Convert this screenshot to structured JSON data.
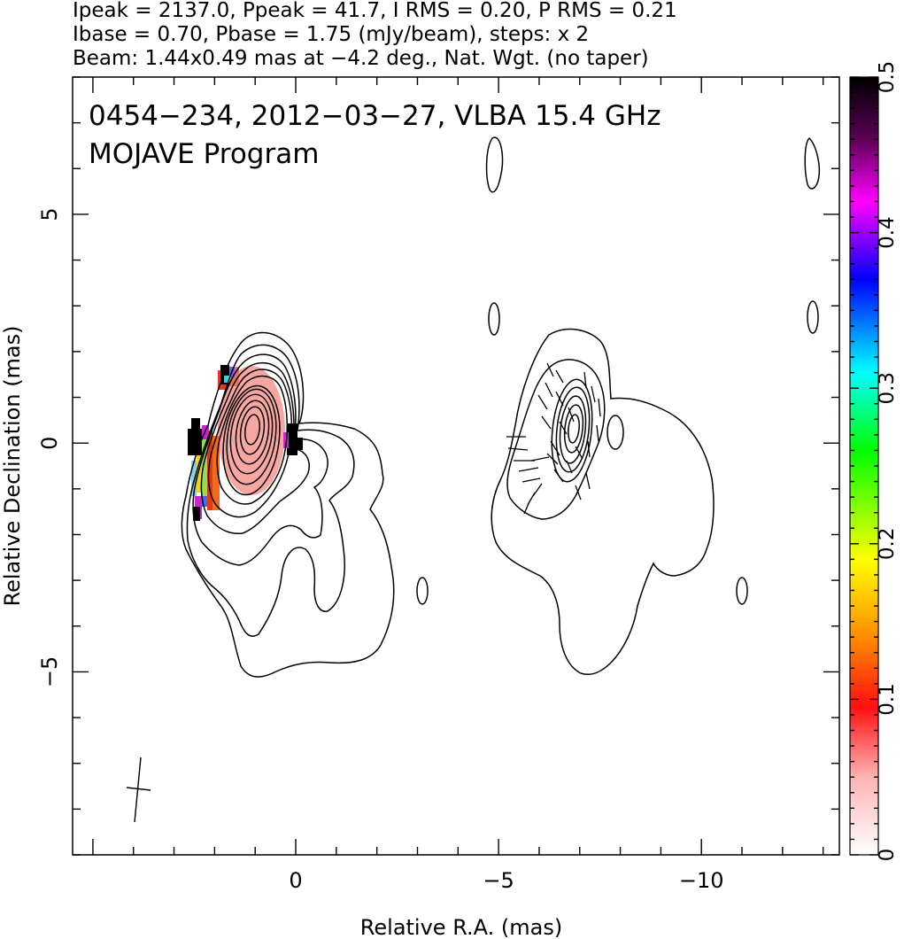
{
  "header": {
    "line1": "Ipeak = 2137.0, Ppeak = 41.7, I RMS = 0.20, P RMS = 0.21",
    "line2": "Ibase = 0.70, Pbase = 1.75 (mJy/beam), steps: x 2",
    "line3": "Beam: 1.44x0.49 mas at −4.2 deg., Nat. Wgt. (no taper)"
  },
  "chart_data": {
    "type": "heatmap",
    "title": "0454−234, 2012−03−27, VLBA 15.4 GHz",
    "subtitle": "MOJAVE Program",
    "xlabel": "Relative R.A. (mas)",
    "ylabel": "Relative Declination (mas)",
    "xlim": [
      5.5,
      -13.4
    ],
    "ylim": [
      -9.0,
      8.0
    ],
    "x_ticks": [
      {
        "value": 0,
        "label": "0"
      },
      {
        "value": -5,
        "label": "−5"
      },
      {
        "value": -10,
        "label": "−10"
      }
    ],
    "y_ticks": [
      {
        "value": 5,
        "label": "5"
      },
      {
        "value": 0,
        "label": "0"
      },
      {
        "value": -5,
        "label": "−5"
      }
    ],
    "colorbar": {
      "min": 0,
      "max": 0.5,
      "ticks": [
        {
          "value": 0,
          "label": "0"
        },
        {
          "value": 0.1,
          "label": "0.1"
        },
        {
          "value": 0.2,
          "label": "0.2"
        },
        {
          "value": 0.3,
          "label": "0.3"
        },
        {
          "value": 0.4,
          "label": "0.4"
        },
        {
          "value": 0.5,
          "label": "0.5"
        }
      ],
      "colors": [
        "#ffffff",
        "#ffb3b3",
        "#ff0000",
        "#ff8c00",
        "#ffff00",
        "#00ff00",
        "#00ffff",
        "#0000ff",
        "#ff00ff",
        "#000000"
      ]
    },
    "beam": {
      "major_mas": 1.44,
      "minor_mas": 0.49,
      "pa_deg": -4.2
    },
    "stats": {
      "ipeak": 2137.0,
      "ppeak": 41.7,
      "i_rms": 0.2,
      "p_rms": 0.21,
      "ibase": 0.7,
      "pbase": 1.75,
      "step_factor": 2
    }
  }
}
